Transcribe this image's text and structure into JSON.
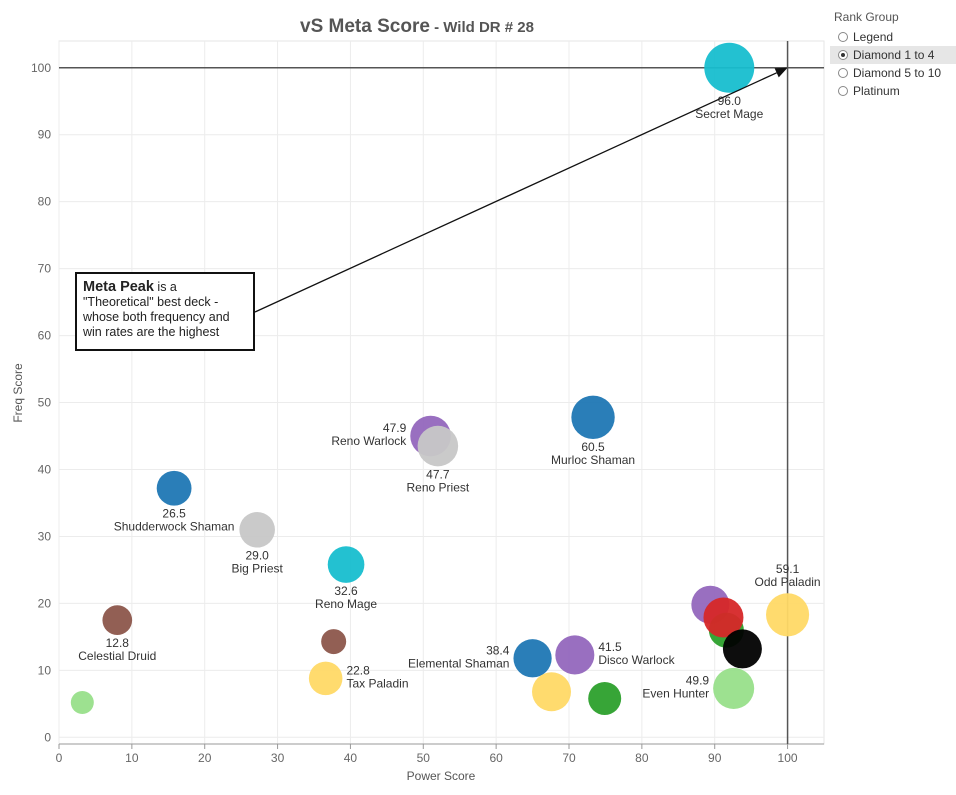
{
  "title": {
    "main": "vS Meta Score",
    "sub": " - Wild DR # 28"
  },
  "legend": {
    "title": "Rank Group",
    "items": [
      {
        "label": "Legend",
        "selected": false
      },
      {
        "label": "Diamond 1 to 4",
        "selected": true
      },
      {
        "label": "Diamond 5 to 10",
        "selected": false
      },
      {
        "label": "Platinum",
        "selected": false
      }
    ]
  },
  "annotation": {
    "bold": "Meta Peak",
    "text": " is a \"Theoretical\" best deck - whose both frequency and win rates are the highest"
  },
  "chart_data": {
    "type": "scatter",
    "title": "vS Meta Score - Wild DR # 28",
    "xlabel": "Power Score",
    "ylabel": "Freq Score",
    "xlim": [
      0,
      105
    ],
    "ylim": [
      -1,
      104
    ],
    "xticks": [
      0,
      10,
      20,
      30,
      40,
      50,
      60,
      70,
      80,
      90,
      100
    ],
    "yticks": [
      0,
      10,
      20,
      30,
      40,
      50,
      60,
      70,
      80,
      90,
      100
    ],
    "grid": true,
    "reference_lines": {
      "x": 100,
      "y": 100
    },
    "points": [
      {
        "x": 92,
        "y": 100,
        "score": "96.0",
        "name": "Secret Mage",
        "color": "#17becf"
      },
      {
        "x": 73.3,
        "y": 47.8,
        "score": "60.5",
        "name": "Murloc Shaman",
        "color": "#1f77b4"
      },
      {
        "x": 51,
        "y": 45,
        "score": "47.9",
        "name": "Reno Warlock",
        "color": "#9467bd"
      },
      {
        "x": 52,
        "y": 43.5,
        "score": "47.7",
        "name": "Reno Priest",
        "color": "#c7c7c7"
      },
      {
        "x": 15.8,
        "y": 37.2,
        "score": "26.5",
        "name": "Shudderwock Shaman",
        "color": "#1f77b4"
      },
      {
        "x": 27.2,
        "y": 31,
        "score": "29.0",
        "name": "Big Priest",
        "color": "#c7c7c7"
      },
      {
        "x": 39.4,
        "y": 25.8,
        "score": "32.6",
        "name": "Reno Mage",
        "color": "#17becf"
      },
      {
        "x": 8,
        "y": 17.5,
        "score": "12.8",
        "name": "Celestial Druid",
        "color": "#8c564b"
      },
      {
        "x": 37.7,
        "y": 14.3,
        "score": "",
        "name": "",
        "color": "#8c564b"
      },
      {
        "x": 36.6,
        "y": 8.8,
        "score": "22.8",
        "name": "Tax Paladin",
        "color": "#ffd966"
      },
      {
        "x": 3.2,
        "y": 5.2,
        "score": "",
        "name": "",
        "color": "#98df8a"
      },
      {
        "x": 65,
        "y": 11.8,
        "score": "38.4",
        "name": "Elemental Shaman",
        "color": "#1f77b4"
      },
      {
        "x": 70.8,
        "y": 12.3,
        "score": "41.5",
        "name": "Disco Warlock",
        "color": "#9467bd"
      },
      {
        "x": 67.6,
        "y": 6.8,
        "score": "",
        "name": "",
        "color": "#ffd966"
      },
      {
        "x": 74.9,
        "y": 5.8,
        "score": "",
        "name": "",
        "color": "#2ca02c"
      },
      {
        "x": 89.4,
        "y": 19.8,
        "score": "",
        "name": "",
        "color": "#9467bd"
      },
      {
        "x": 91.6,
        "y": 16,
        "score": "",
        "name": "",
        "color": "#2ca02c"
      },
      {
        "x": 91.2,
        "y": 17.9,
        "score": "",
        "name": "",
        "color": "#d62728"
      },
      {
        "x": 93.8,
        "y": 13.2,
        "score": "",
        "name": "",
        "color": "#000000"
      },
      {
        "x": 92.6,
        "y": 7.3,
        "score": "49.9",
        "name": "Even Hunter",
        "color": "#98df8a"
      },
      {
        "x": 100,
        "y": 18.3,
        "score": "59.1",
        "name": "Odd Paladin",
        "color": "#ffd966"
      }
    ]
  }
}
